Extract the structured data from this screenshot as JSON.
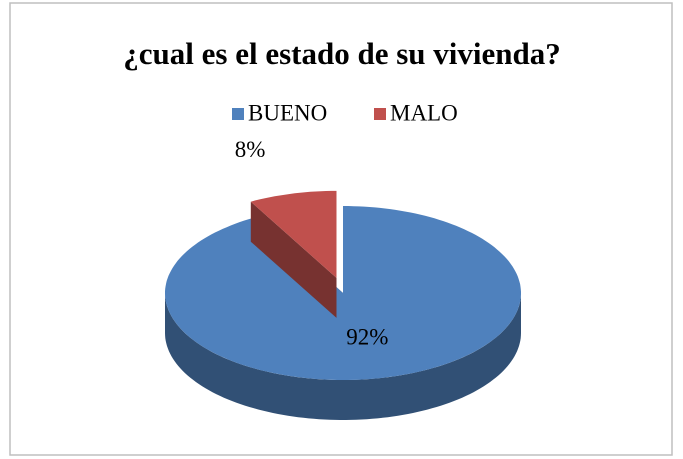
{
  "chart_data": {
    "type": "pie",
    "title": "¿cual es el estado de su vivienda?",
    "categories": [
      "BUENO",
      "MALO"
    ],
    "values": [
      92,
      8
    ],
    "value_labels": [
      "92%",
      "8%"
    ],
    "colors": [
      "#4f81bd",
      "#c0504d"
    ],
    "legend": "top"
  }
}
